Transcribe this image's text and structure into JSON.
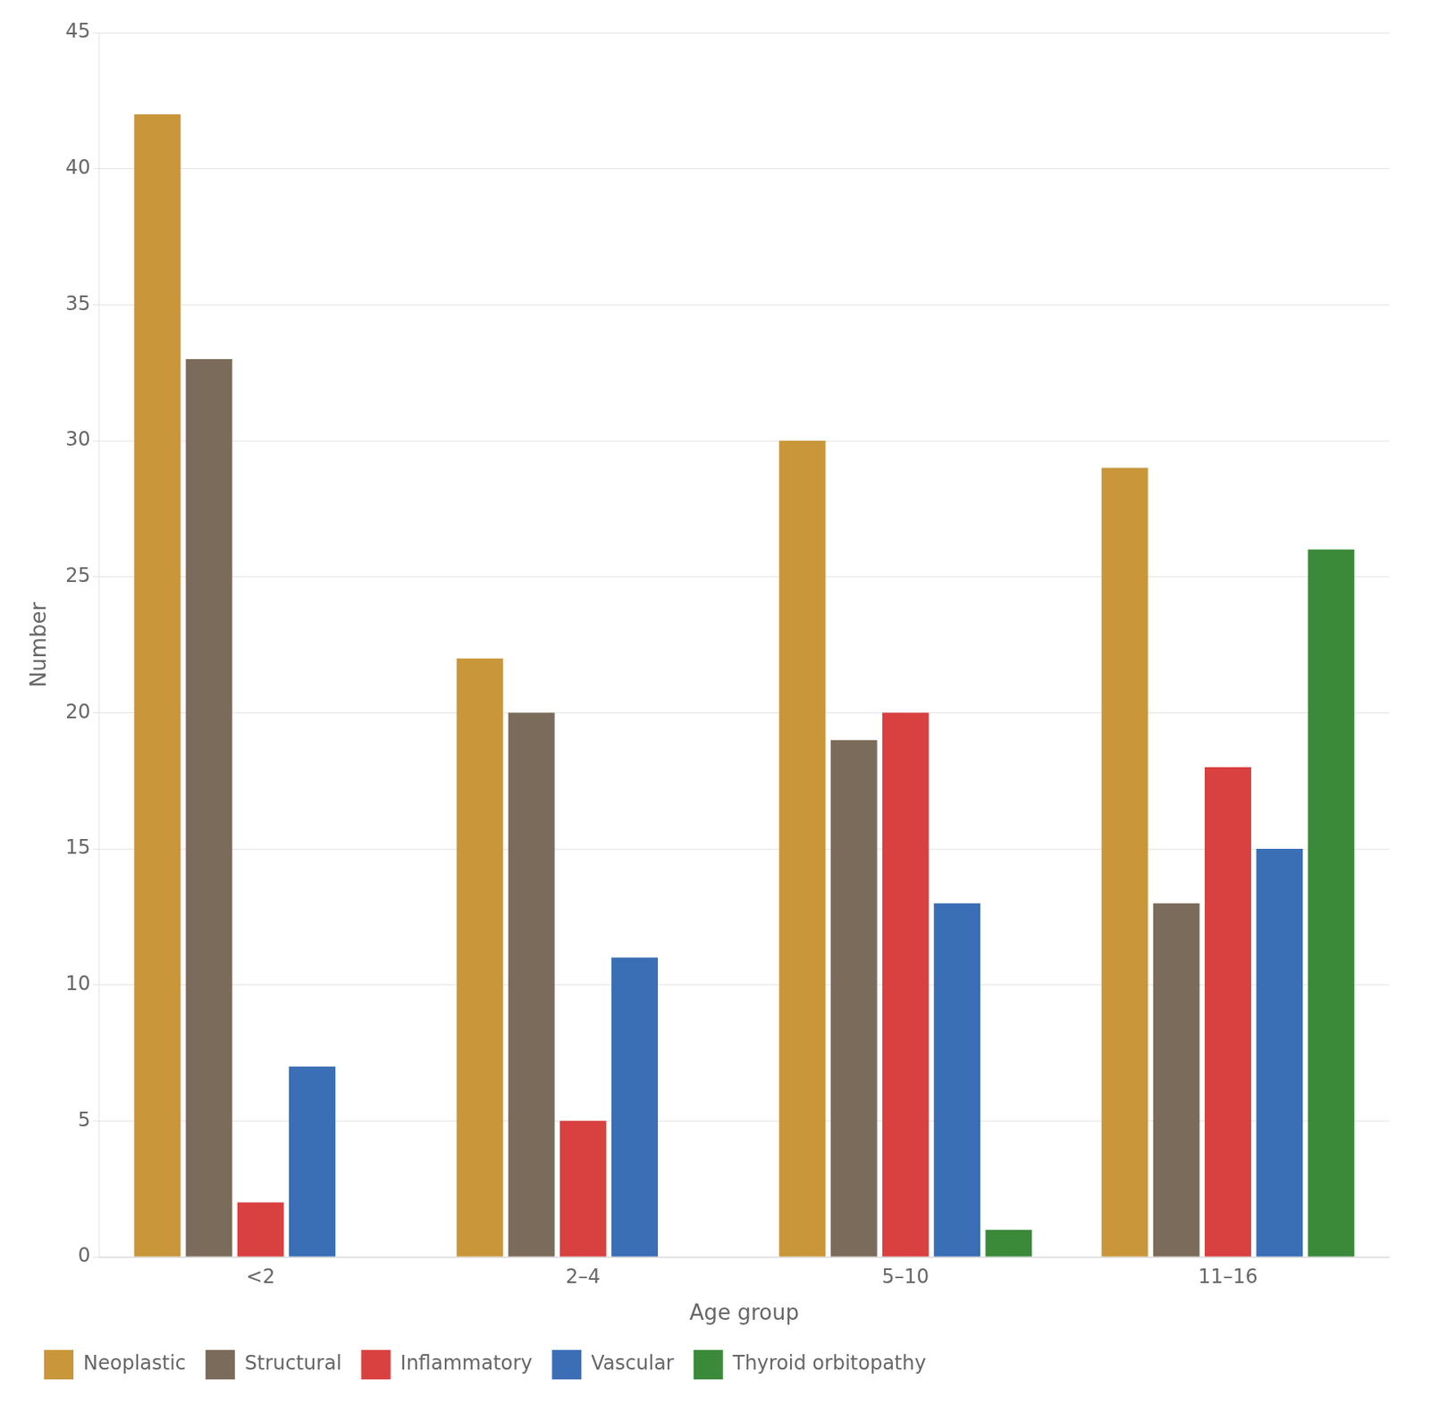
{
  "chart_data": {
    "type": "bar",
    "xlabel": "Age group",
    "ylabel": "Number",
    "categories": [
      "<2",
      "2–4",
      "5–10",
      "11–16"
    ],
    "series": [
      {
        "name": "Neoplastic",
        "color": "#C9963A",
        "values": [
          42,
          22,
          30,
          29
        ]
      },
      {
        "name": "Structural",
        "color": "#7B6B5A",
        "values": [
          33,
          20,
          19,
          13
        ]
      },
      {
        "name": "Inflammatory",
        "color": "#D94040",
        "values": [
          2,
          5,
          20,
          18
        ]
      },
      {
        "name": "Vascular",
        "color": "#3A6EB5",
        "values": [
          7,
          11,
          13,
          15
        ]
      },
      {
        "name": "Thyroid orbitopathy",
        "color": "#3A8A3A",
        "values": [
          0,
          0,
          1,
          26
        ]
      }
    ],
    "ylim": [
      0,
      45
    ],
    "yticks": [
      0,
      5,
      10,
      15,
      20,
      25,
      30,
      35,
      40,
      45
    ],
    "grid": "y",
    "legend": "lower left"
  }
}
